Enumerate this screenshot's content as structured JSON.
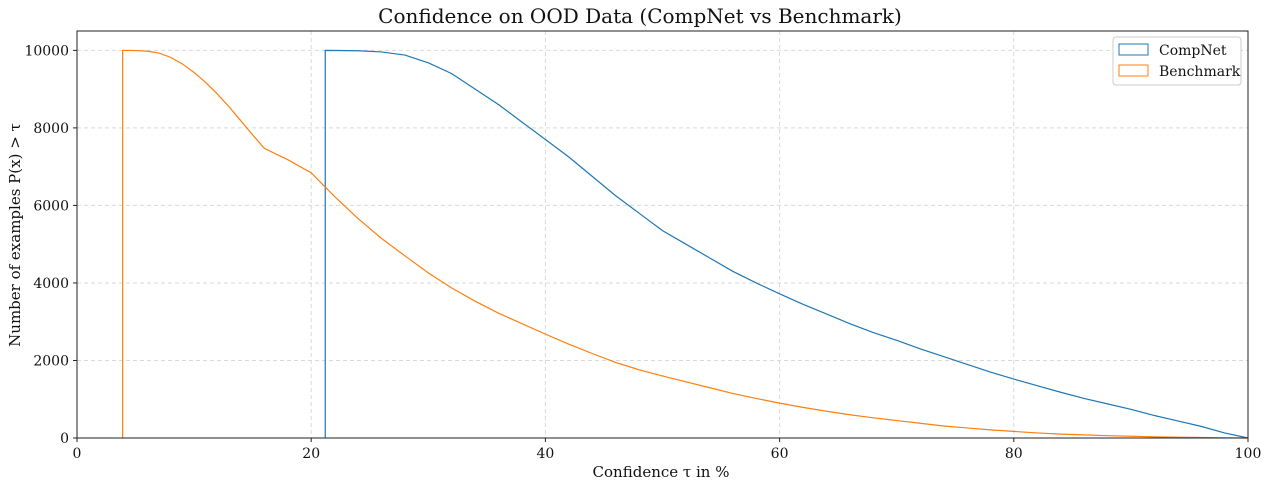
{
  "chart_data": {
    "type": "line",
    "title": "Confidence on OOD Data (CompNet vs Benchmark)",
    "xlabel": "Confidence τ in %",
    "ylabel": "Number of examples P(x) > τ",
    "xlim": [
      0,
      100
    ],
    "ylim": [
      0,
      10500
    ],
    "xticks": [
      0,
      20,
      40,
      60,
      80,
      100
    ],
    "yticks": [
      0,
      2000,
      4000,
      6000,
      8000,
      10000
    ],
    "grid": true,
    "legend_position": "top-right",
    "series": [
      {
        "name": "CompNet",
        "color": "#1f77b4",
        "x": [
          21.2,
          21.2,
          24,
          26,
          28,
          30,
          32,
          34,
          36,
          38,
          40,
          42,
          44,
          46,
          48,
          50,
          52,
          54,
          56,
          58,
          60,
          62,
          64,
          66,
          68,
          70,
          72,
          74,
          76,
          78,
          80,
          82,
          84,
          86,
          88,
          90,
          92,
          94,
          96,
          98,
          100
        ],
        "y": [
          0,
          10000,
          9990,
          9960,
          9880,
          9680,
          9400,
          9000,
          8600,
          8150,
          7700,
          7250,
          6750,
          6250,
          5800,
          5350,
          5000,
          4650,
          4300,
          4000,
          3720,
          3450,
          3200,
          2950,
          2720,
          2520,
          2300,
          2100,
          1900,
          1700,
          1520,
          1350,
          1180,
          1020,
          880,
          740,
          580,
          440,
          300,
          130,
          0
        ]
      },
      {
        "name": "Benchmark",
        "color": "#ff7f0e",
        "x": [
          3.9,
          3.9,
          5,
          6,
          7,
          8,
          9,
          10,
          11,
          12,
          13,
          14,
          15,
          16,
          18,
          20,
          22,
          24,
          26,
          28,
          30,
          32,
          34,
          36,
          38,
          40,
          42,
          44,
          46,
          48,
          50,
          52,
          54,
          56,
          58,
          60,
          62,
          64,
          66,
          68,
          70,
          72,
          74,
          76,
          78,
          80,
          82,
          84,
          86,
          88,
          90,
          92,
          94,
          96,
          98,
          100
        ],
        "y": [
          0,
          10000,
          9995,
          9980,
          9930,
          9820,
          9650,
          9430,
          9170,
          8870,
          8540,
          8180,
          7820,
          7470,
          7180,
          6840,
          6230,
          5660,
          5150,
          4700,
          4260,
          3870,
          3530,
          3220,
          2950,
          2680,
          2420,
          2180,
          1950,
          1760,
          1600,
          1450,
          1300,
          1150,
          1020,
          900,
          790,
          690,
          600,
          520,
          450,
          380,
          310,
          260,
          210,
          170,
          130,
          100,
          80,
          60,
          45,
          30,
          20,
          12,
          5,
          0
        ]
      }
    ]
  }
}
